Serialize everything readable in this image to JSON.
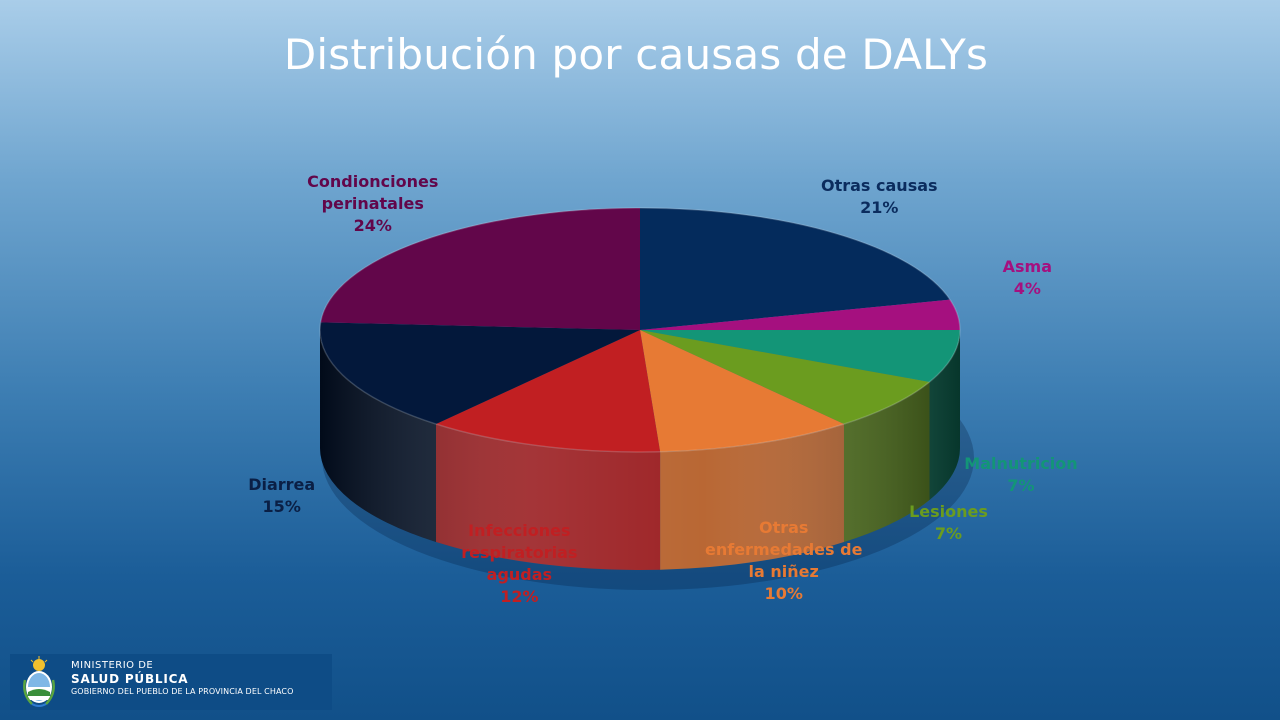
{
  "slide": {
    "title": "Distribución por causas de DALYs"
  },
  "chart_data": {
    "type": "pie",
    "title": "Distribución por causas de DALYs",
    "style": "3d-tilted",
    "slices": [
      {
        "label": [
          "Otras causas"
        ],
        "value": 21,
        "value_label": "21%",
        "color": "#042b5c"
      },
      {
        "label": [
          "Asma"
        ],
        "value": 4,
        "value_label": "4%",
        "color": "#a5107f"
      },
      {
        "label": [
          "Malnutricion"
        ],
        "value": 7,
        "value_label": "7%",
        "color": "#139577"
      },
      {
        "label": [
          "Lesiones"
        ],
        "value": 7,
        "value_label": "7%",
        "color": "#6b9c1f"
      },
      {
        "label": [
          "Otras",
          "enfermedades de",
          "la niñez"
        ],
        "value": 10,
        "value_label": "10%",
        "color": "#e77a34"
      },
      {
        "label": [
          "Infecciones",
          "respiratorias",
          "agudas"
        ],
        "value": 12,
        "value_label": "12%",
        "color": "#c11f22"
      },
      {
        "label": [
          "Diarrea"
        ],
        "value": 15,
        "value_label": "15%",
        "color": "#03183b"
      },
      {
        "label": [
          "Condionciones",
          "perinatales"
        ],
        "value": 24,
        "value_label": "24%",
        "color": "#62064a"
      }
    ]
  },
  "logo": {
    "line1": "MINISTERIO DE",
    "line2": "SALUD PÚBLICA",
    "line3": "GOBIERNO DEL PUEBLO DE LA PROVINCIA DEL CHACO"
  }
}
